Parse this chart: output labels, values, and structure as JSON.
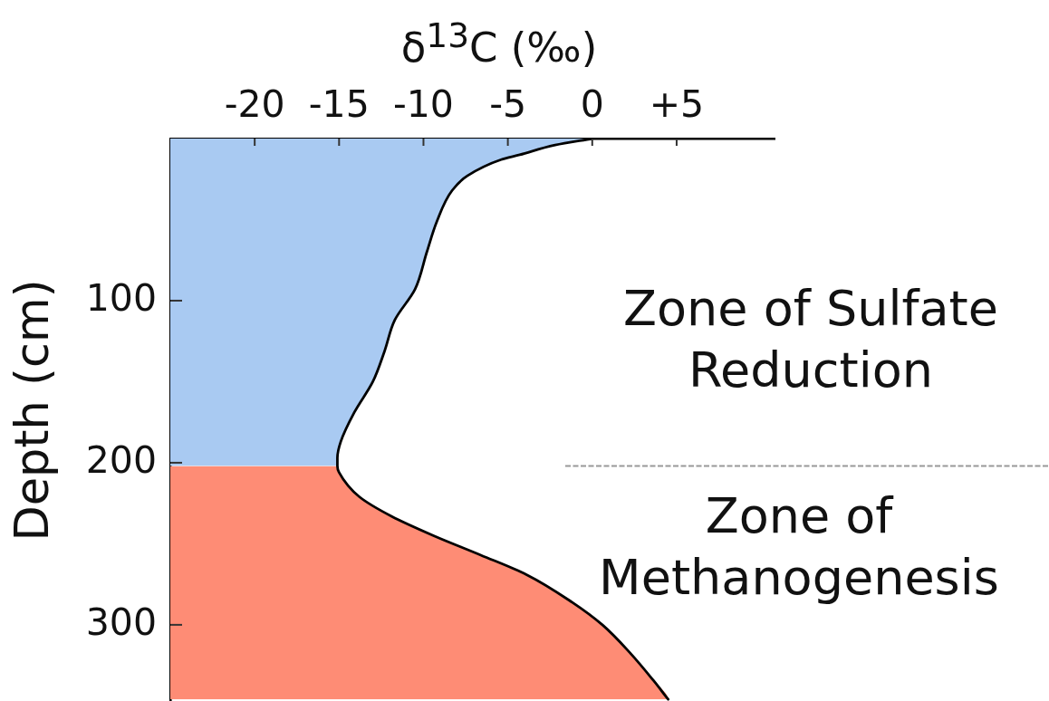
{
  "chart_data": {
    "type": "line",
    "xlabel": "δ$^{13}$C (‰)",
    "ylabel": "Depth (cm)",
    "annotations": [
      "Zone of Sulfate Reduction",
      "Zone of Methanogenesis"
    ],
    "xlim": [
      -25,
      10.8
    ],
    "xticks": [
      -20,
      -15,
      -10,
      -5,
      0,
      {
        "value": 5,
        "label": "+5"
      }
    ],
    "ylim": [
      347,
      0
    ],
    "yticks": [
      100,
      200,
      300
    ],
    "marker": "none",
    "ref_lines": [
      {
        "axis": "y",
        "value": 202,
        "color": "#999999",
        "line_style": "dashed"
      }
    ],
    "series": [
      {
        "type": "area",
        "color": "#a9caf2",
        "x": [
          -25,
          0,
          -2.2,
          -4.3,
          -5.4,
          -7.4,
          -8.3,
          -9.2,
          -9.8,
          -10.5,
          -11.7,
          -12.3,
          -13.0,
          -14.1,
          -14.9,
          -15.1,
          -15.1,
          -25
        ],
        "values": [
          0,
          0,
          4,
          10,
          13,
          23,
          32,
          51,
          70,
          93,
          112,
          131,
          150,
          169,
          187,
          197,
          202,
          202
        ]
      },
      {
        "type": "area",
        "color": "#fe8c75",
        "x": [
          -25,
          -15.1,
          -15.0,
          -13.8,
          -11.9,
          -9.4,
          -6.6,
          -3.9,
          -1.2,
          0.6,
          2.3,
          3.6,
          4.5,
          -25
        ],
        "values": [
          202,
          202,
          206,
          221,
          233,
          245,
          257,
          269,
          286,
          300,
          318,
          334,
          346,
          346
        ]
      },
      {
        "color": "#000000",
        "x": [
          0,
          -2.2,
          -4.3,
          -5.4,
          -7.4,
          -8.3,
          -9.2,
          -9.8,
          -10.5,
          -11.7,
          -12.3,
          -13.0,
          -14.1,
          -14.9,
          -15.1,
          -15.1,
          -15.0,
          -13.8,
          -11.9,
          -9.4,
          -6.6,
          -3.9,
          -1.2,
          0.6,
          2.3,
          3.6,
          4.5
        ],
        "values": [
          0,
          4,
          10,
          13,
          23,
          32,
          51,
          70,
          93,
          112,
          131,
          150,
          169,
          187,
          197,
          202,
          206,
          221,
          233,
          245,
          257,
          269,
          286,
          300,
          318,
          334,
          346
        ]
      }
    ]
  }
}
